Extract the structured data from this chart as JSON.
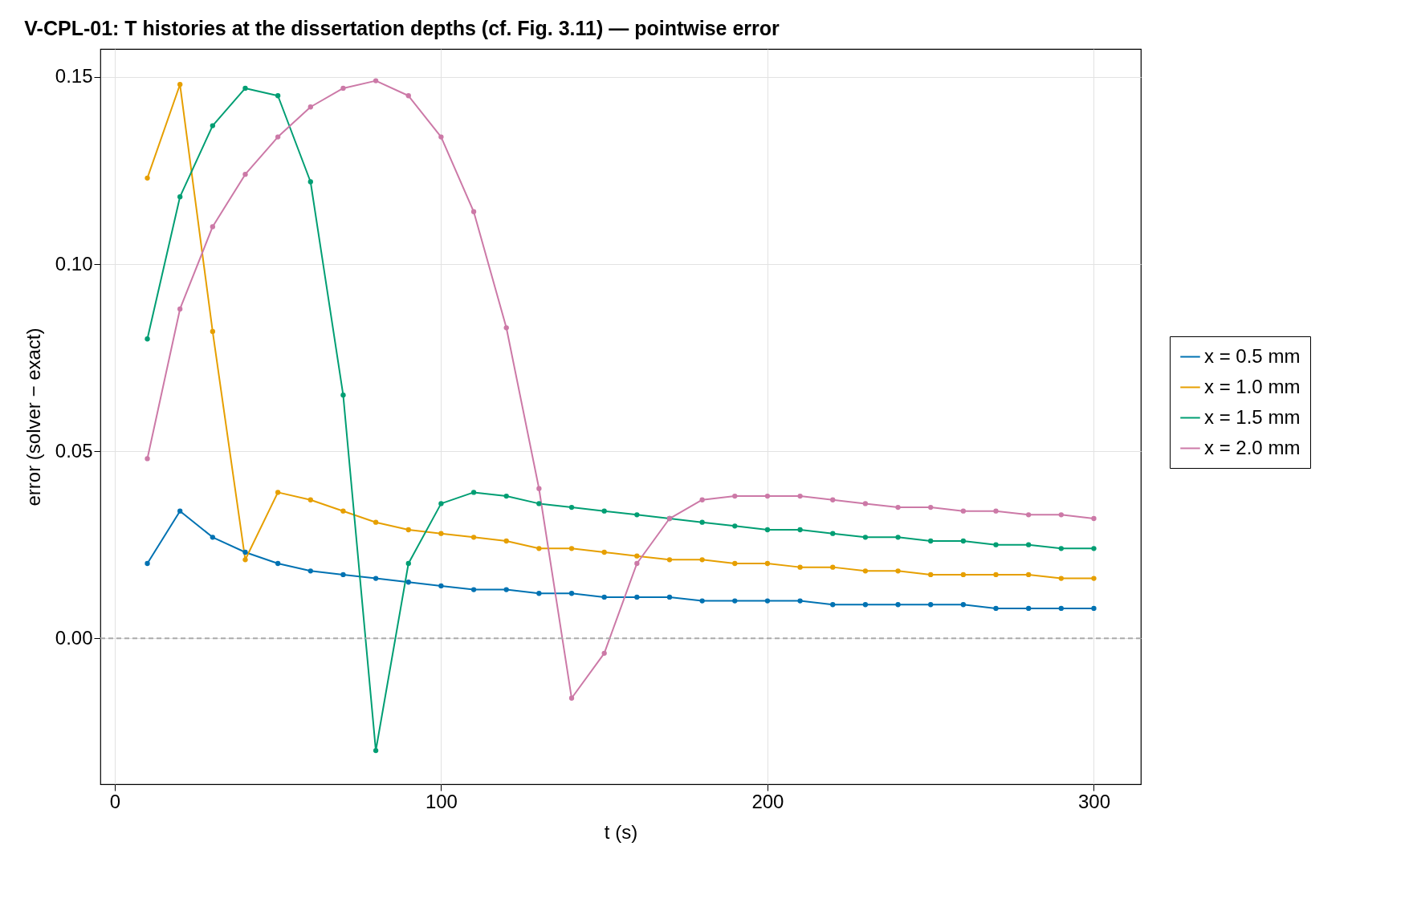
{
  "chart_data": {
    "type": "line",
    "title": "V-CPL-01: T histories at the dissertation depths (cf. Fig. 3.11) — pointwise error",
    "xlabel": "t (s)",
    "ylabel": "error (solver − exact)",
    "x": [
      10,
      20,
      30,
      40,
      50,
      60,
      70,
      80,
      90,
      100,
      110,
      120,
      130,
      140,
      150,
      160,
      170,
      180,
      190,
      200,
      210,
      220,
      230,
      240,
      250,
      260,
      270,
      280,
      290,
      300
    ],
    "series": [
      {
        "name": "x = 0.5 mm",
        "color": "#0072b2",
        "values": [
          0.02,
          0.034,
          0.027,
          0.023,
          0.02,
          0.018,
          0.017,
          0.016,
          0.015,
          0.014,
          0.013,
          0.013,
          0.012,
          0.012,
          0.011,
          0.011,
          0.011,
          0.01,
          0.01,
          0.01,
          0.01,
          0.009,
          0.009,
          0.009,
          0.009,
          0.009,
          0.008,
          0.008,
          0.008,
          0.008
        ]
      },
      {
        "name": "x = 1.0 mm",
        "color": "#e69f00",
        "values": [
          0.123,
          0.148,
          0.082,
          0.021,
          0.039,
          0.037,
          0.034,
          0.031,
          0.029,
          0.028,
          0.027,
          0.026,
          0.024,
          0.024,
          0.023,
          0.022,
          0.021,
          0.021,
          0.02,
          0.02,
          0.019,
          0.019,
          0.018,
          0.018,
          0.017,
          0.017,
          0.017,
          0.017,
          0.016,
          0.016
        ]
      },
      {
        "name": "x = 1.5 mm",
        "color": "#009e73",
        "values": [
          0.08,
          0.118,
          0.137,
          0.147,
          0.145,
          0.122,
          0.065,
          -0.03,
          0.02,
          0.036,
          0.039,
          0.038,
          0.036,
          0.035,
          0.034,
          0.033,
          0.032,
          0.031,
          0.03,
          0.029,
          0.029,
          0.028,
          0.027,
          0.027,
          0.026,
          0.026,
          0.025,
          0.025,
          0.024,
          0.024
        ]
      },
      {
        "name": "x = 2.0 mm",
        "color": "#cc79a7",
        "values": [
          0.048,
          0.088,
          0.11,
          0.124,
          0.134,
          0.142,
          0.147,
          0.149,
          0.145,
          0.134,
          0.114,
          0.083,
          0.04,
          -0.016,
          -0.004,
          0.02,
          0.032,
          0.037,
          0.038,
          0.038,
          0.038,
          0.037,
          0.036,
          0.035,
          0.035,
          0.034,
          0.034,
          0.033,
          0.033,
          0.032
        ]
      }
    ],
    "xlim": [
      -4.4,
      314.4
    ],
    "ylim": [
      -0.039,
      0.1575
    ],
    "xticks": [
      0,
      100,
      200,
      300
    ],
    "yticks": [
      {
        "value": 0,
        "label": "0.00"
      },
      {
        "value": 0.05,
        "label": "0.05"
      },
      {
        "value": 0.1,
        "label": "0.10"
      },
      {
        "value": 0.15,
        "label": "0.15"
      }
    ],
    "ref_lines": [
      {
        "axis": "y",
        "value": 0,
        "color": "#aaaaaa",
        "line_style": "dashed"
      }
    ],
    "grid": true,
    "legend": "right",
    "marker": "circle",
    "line_style": "solid"
  }
}
